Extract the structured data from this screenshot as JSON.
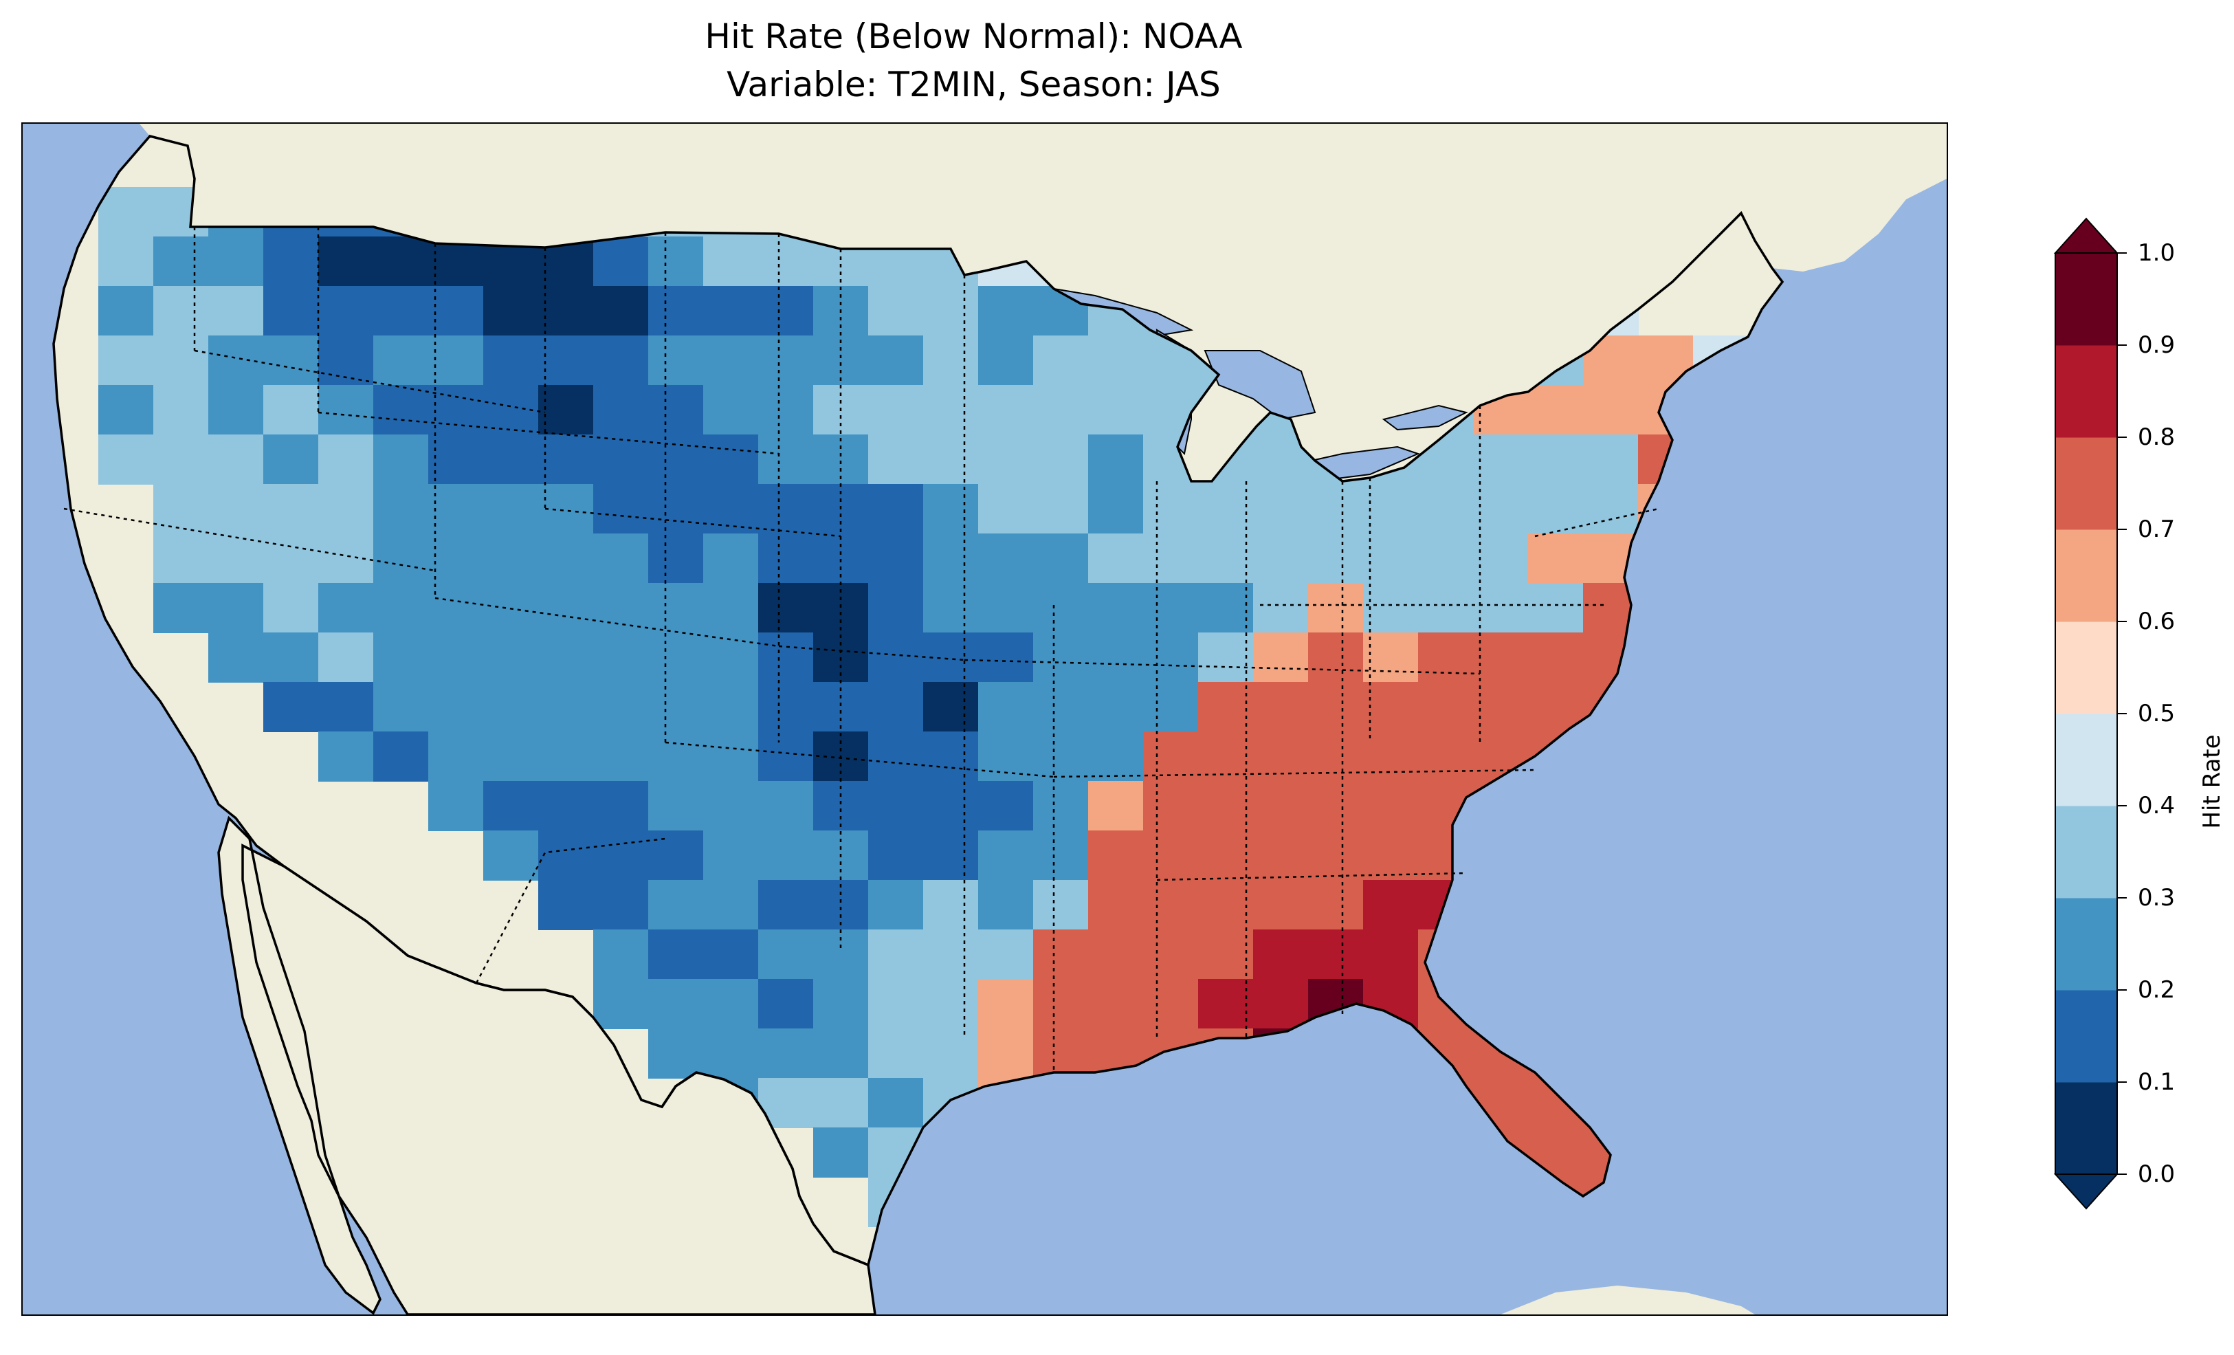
{
  "title_line1": "Hit Rate (Below Normal): NOAA",
  "title_line2": "Variable: T2MIN, Season: JAS",
  "map": {
    "region": "Contiguous United States",
    "colors": {
      "ocean": "#97b6e1",
      "land": "#efeddb",
      "coast": "#000000",
      "state_border": "#000000"
    },
    "field_description": "Gridded hit rate; high values (red) in Southeast & Gulf Coast, low values (blue) over Northern Rockies, Great Plains and Southwest",
    "field_rows": [
      "___bbbbaaa_____",
      "_bbcdddeeefbbbaabbab__",
      "_bccdeeeeedcbbbbbaaabhhbbbb",
      "_cbbddddeeedddcbbccbbbbbcbbba",
      "_bbccdccdddcccccbcbbbbbbbbbbgga",
      "_cbcbcdddeddccbbbbbbbbbbgbgggggb",
      "_bbbcbcddddddccbbbbcbbbbbbbbbhhhg",
      "__bbbbccccddddddcbbcbbbbbbbbbghhgh",
      "__bbbbcccccdcdddcccbbbbbbbbggghhhhg",
      "__ccbcccccccceedccccccbgbbbbhhhhhhh",
      "___ccbcccccccdedddcccbghghhhhhhhhhh_",
      "____ddcccccccdddecccchhhhhhhhhhhhhh__",
      "_____cdccccccdeddccchhhhhhhhhhhhgh___",
      "_______cdddcccddddcghhhhhhhhhhhhgg____",
      "________cdddcccddcchhhhhhhhhhhhhhg",
      "_________ddccddcbcbhhhhhiihhhhhhhh",
      "__________cddccbbbhhhhiiihhhhhhh",
      "__________cccdcbbghhhiijihhhhhhh",
      "___________ccccbbghhhhjjhhhhhhhhh",
      "____________cbbcbghhh____hhhhhhhh",
      "______________cbggh______hhhhhih",
      "_______________bgh________hhhhh",
      "______________________________hh"
    ]
  },
  "colorbar": {
    "label": "Hit Rate",
    "ticks": [
      "0.0",
      "0.1",
      "0.2",
      "0.3",
      "0.4",
      "0.5",
      "0.6",
      "0.7",
      "0.8",
      "0.9",
      "1.0"
    ],
    "bins": [
      "#053061",
      "#2166ac",
      "#4393c3",
      "#92c5de",
      "#d1e5f0",
      "#fddbc7",
      "#f4a582",
      "#d6604d",
      "#b2182b",
      "#67001f"
    ],
    "under_color": "#053061",
    "over_color": "#67001f",
    "extend": "both"
  }
}
